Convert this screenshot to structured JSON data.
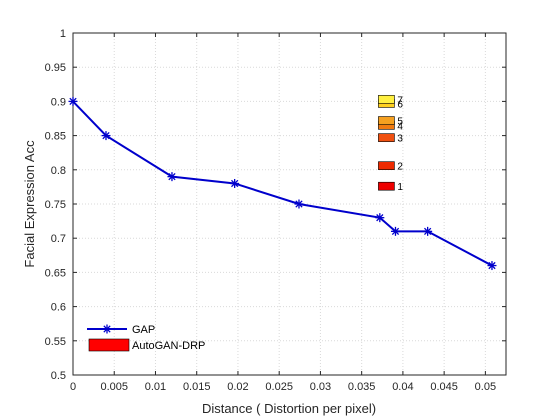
{
  "chart_data": {
    "type": "line",
    "xlabel": "Distance  ( Distortion per pixel)",
    "ylabel": "Facial Expression Acc",
    "xlim": [
      0,
      0.0525
    ],
    "ylim": [
      0.5,
      1.0
    ],
    "x_ticks": [
      "0",
      "0.005",
      "0.01",
      "0.015",
      "0.02",
      "0.025",
      "0.03",
      "0.035",
      "0.04",
      "0.045",
      "0.05"
    ],
    "y_ticks": [
      "0.5",
      "0.55",
      "0.6",
      "0.65",
      "0.7",
      "0.75",
      "0.8",
      "0.85",
      "0.9",
      "0.95",
      "1"
    ],
    "grid": true,
    "series": [
      {
        "name": "GAP",
        "color": "#0000cc",
        "marker": "asterisk",
        "points": [
          [
            0.0,
            0.9
          ],
          [
            0.004,
            0.85
          ],
          [
            0.012,
            0.79
          ],
          [
            0.0196,
            0.78
          ],
          [
            0.0274,
            0.75
          ],
          [
            0.0372,
            0.73
          ],
          [
            0.0391,
            0.71
          ],
          [
            0.043,
            0.71
          ],
          [
            0.0508,
            0.66
          ]
        ]
      }
    ],
    "autogan_drp": {
      "name": "AutoGAN-DRP",
      "marker": "filled-square",
      "points": [
        {
          "label": "1",
          "x": 0.038,
          "y": 0.776,
          "color": "#ee0000"
        },
        {
          "label": "2",
          "x": 0.038,
          "y": 0.806,
          "color": "#ee2a00"
        },
        {
          "label": "3",
          "x": 0.038,
          "y": 0.847,
          "color": "#f05010"
        },
        {
          "label": "4",
          "x": 0.038,
          "y": 0.865,
          "color": "#f07a10"
        },
        {
          "label": "5",
          "x": 0.038,
          "y": 0.872,
          "color": "#f5a020"
        },
        {
          "label": "6",
          "x": 0.038,
          "y": 0.897,
          "color": "#ffd020"
        },
        {
          "label": "7",
          "x": 0.038,
          "y": 0.903,
          "color": "#fff040"
        }
      ]
    },
    "legend": {
      "placement": "bottom-left",
      "entries": [
        {
          "label": "GAP",
          "style": "line-asterisk",
          "color": "#0000cc"
        },
        {
          "label": "AutoGAN-DRP",
          "style": "filled-rect",
          "color": "#ff0000"
        }
      ]
    }
  }
}
